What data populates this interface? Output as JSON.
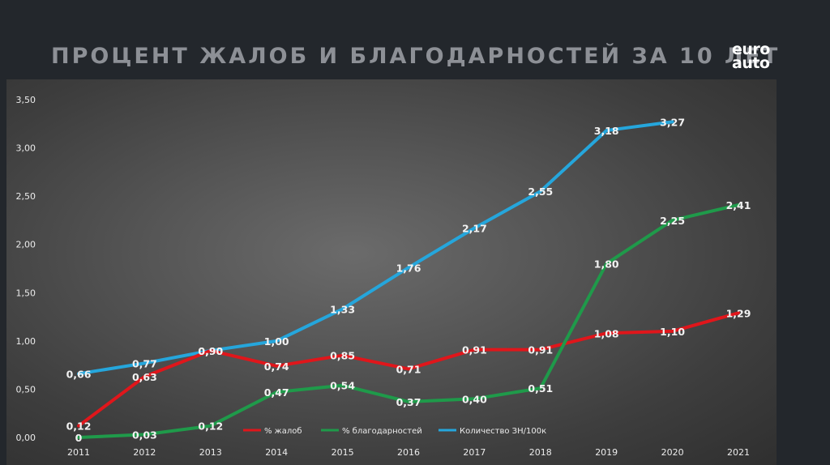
{
  "slide": {
    "title": "ПРОЦЕНТ ЖАЛОБ И БЛАГОДАРНОСТЕЙ ЗА 10 ЛЕТ",
    "logo_line1": "euro",
    "logo_line2": "auto"
  },
  "chart_data": {
    "type": "line",
    "title": "",
    "xlabel": "",
    "ylabel": "",
    "categories": [
      "2011",
      "2012",
      "2013",
      "2014",
      "2015",
      "2016",
      "2017",
      "2018",
      "2019",
      "2020",
      "2021"
    ],
    "ylim": [
      0,
      3.5
    ],
    "yticks": [
      "0,00",
      "0,50",
      "1,00",
      "1,50",
      "2,00",
      "2,50",
      "3,00",
      "3,50"
    ],
    "grid": false,
    "legend_position": "bottom-center-inside",
    "series": [
      {
        "name": "% жалоб",
        "color": "#e0161b",
        "values": [
          0.12,
          0.63,
          0.9,
          0.74,
          0.85,
          0.71,
          0.91,
          0.91,
          1.08,
          1.1,
          1.29
        ],
        "labels": [
          "0,12",
          "0,63",
          "0,90",
          "0,74",
          "0,85",
          "0,71",
          "0,91",
          "0,91",
          "1,08",
          "1,10",
          "1,29"
        ]
      },
      {
        "name": "% благодарностей",
        "color": "#1f9a4a",
        "values": [
          0,
          0.03,
          0.12,
          0.47,
          0.54,
          0.37,
          0.4,
          0.51,
          1.8,
          2.25,
          2.41
        ],
        "labels": [
          "0",
          "0,03",
          "0,12",
          "0,47",
          "0,54",
          "0,37",
          "0,40",
          "0,51",
          "1,80",
          "2,25",
          "2,41"
        ]
      },
      {
        "name": "Количество ЗН/100к",
        "color": "#25a6dc",
        "values": [
          0.66,
          0.77,
          0.9,
          1.0,
          1.33,
          1.76,
          2.17,
          2.55,
          3.18,
          3.27,
          null
        ],
        "labels": [
          "0,66",
          "0,77",
          "0,90",
          "1,00",
          "1,33",
          "1,76",
          "2,17",
          "2,55",
          "3,18",
          "3,27",
          ""
        ]
      }
    ]
  }
}
